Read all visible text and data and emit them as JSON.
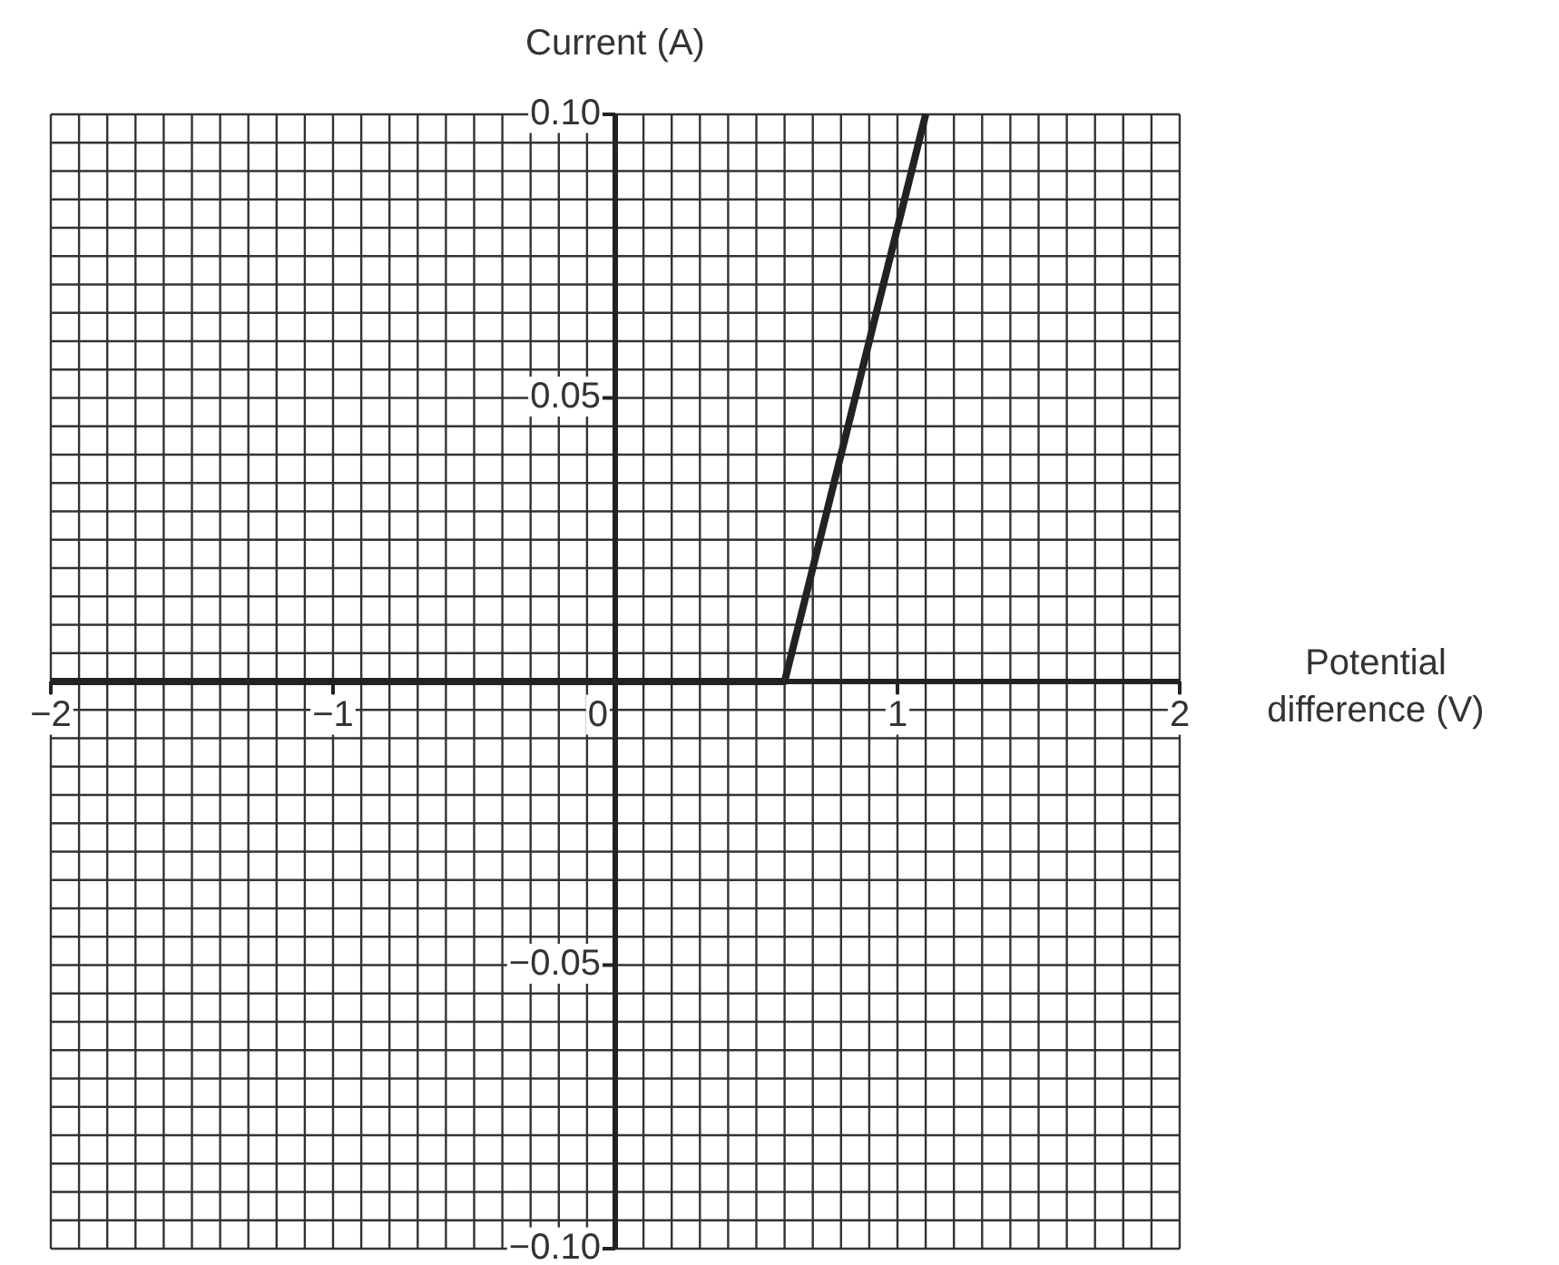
{
  "chart_data": {
    "type": "line",
    "xlabel": "Potential difference (V)",
    "ylabel": "Current (A)",
    "grid": true,
    "xlim": [
      -2,
      2
    ],
    "ylim": [
      -0.1,
      0.1
    ],
    "xticks": [
      {
        "value": -2,
        "label": "−2"
      },
      {
        "value": -1.9,
        "label": null
      },
      {
        "value": -1.8,
        "label": null
      },
      {
        "value": -1.7,
        "label": null
      },
      {
        "value": -1.6,
        "label": null
      },
      {
        "value": -1.5,
        "label": null
      },
      {
        "value": -1.4,
        "label": null
      },
      {
        "value": -1.3,
        "label": null
      },
      {
        "value": -1.2,
        "label": null
      },
      {
        "value": -1.1,
        "label": null
      },
      {
        "value": -1,
        "label": "−1"
      },
      {
        "value": -0.9,
        "label": null
      },
      {
        "value": -0.8,
        "label": null
      },
      {
        "value": -0.7,
        "label": null
      },
      {
        "value": -0.6,
        "label": null
      },
      {
        "value": -0.5,
        "label": null
      },
      {
        "value": -0.4,
        "label": null
      },
      {
        "value": -0.3,
        "label": null
      },
      {
        "value": -0.2,
        "label": null
      },
      {
        "value": -0.1,
        "label": null
      },
      0,
      {
        "value": 0.1,
        "label": null
      },
      {
        "value": 0.2,
        "label": null
      },
      {
        "value": 0.3,
        "label": null
      },
      {
        "value": 0.4,
        "label": null
      },
      {
        "value": 0.5,
        "label": null
      },
      {
        "value": 0.6,
        "label": null
      },
      {
        "value": 0.7,
        "label": null
      },
      {
        "value": 0.8,
        "label": null
      },
      {
        "value": 0.9,
        "label": null
      },
      1,
      {
        "value": 1.1,
        "label": null
      },
      {
        "value": 1.2,
        "label": null
      },
      {
        "value": 1.3,
        "label": null
      },
      {
        "value": 1.4,
        "label": null
      },
      {
        "value": 1.5,
        "label": null
      },
      {
        "value": 1.6,
        "label": null
      },
      {
        "value": 1.7,
        "label": null
      },
      {
        "value": 1.8,
        "label": null
      },
      {
        "value": 1.9,
        "label": null
      },
      2
    ],
    "yticks": [
      {
        "value": -0.1,
        "label": "−0.10"
      },
      {
        "value": -0.095,
        "label": null
      },
      {
        "value": -0.09,
        "label": null
      },
      {
        "value": -0.085,
        "label": null
      },
      {
        "value": -0.08,
        "label": null
      },
      {
        "value": -0.075,
        "label": null
      },
      {
        "value": -0.07,
        "label": null
      },
      {
        "value": -0.065,
        "label": null
      },
      {
        "value": -0.06,
        "label": null
      },
      {
        "value": -0.055,
        "label": null
      },
      {
        "value": -0.05,
        "label": "−0.05"
      },
      {
        "value": -0.045,
        "label": null
      },
      {
        "value": -0.04,
        "label": null
      },
      {
        "value": -0.035,
        "label": null
      },
      {
        "value": -0.03,
        "label": null
      },
      {
        "value": -0.025,
        "label": null
      },
      {
        "value": -0.02,
        "label": null
      },
      {
        "value": -0.015,
        "label": null
      },
      {
        "value": -0.01,
        "label": null
      },
      {
        "value": -0.005,
        "label": null
      },
      {
        "value": 0,
        "label": null
      },
      {
        "value": 0.005,
        "label": null
      },
      {
        "value": 0.01,
        "label": null
      },
      {
        "value": 0.015,
        "label": null
      },
      {
        "value": 0.02,
        "label": null
      },
      {
        "value": 0.025,
        "label": null
      },
      {
        "value": 0.03,
        "label": null
      },
      {
        "value": 0.035,
        "label": null
      },
      {
        "value": 0.04,
        "label": null
      },
      {
        "value": 0.045,
        "label": null
      },
      {
        "value": 0.05,
        "label": "0.05"
      },
      {
        "value": 0.055,
        "label": null
      },
      {
        "value": 0.06,
        "label": null
      },
      {
        "value": 0.065,
        "label": null
      },
      {
        "value": 0.07,
        "label": null
      },
      {
        "value": 0.075,
        "label": null
      },
      {
        "value": 0.08,
        "label": null
      },
      {
        "value": 0.085,
        "label": null
      },
      {
        "value": 0.09,
        "label": null
      },
      {
        "value": 0.095,
        "label": null
      },
      {
        "value": 0.1,
        "label": "0.10"
      }
    ],
    "series": [
      {
        "color": "#222222",
        "x": [
          -2,
          0.6,
          1.1
        ],
        "values": [
          0,
          0,
          0.1
        ]
      }
    ]
  }
}
